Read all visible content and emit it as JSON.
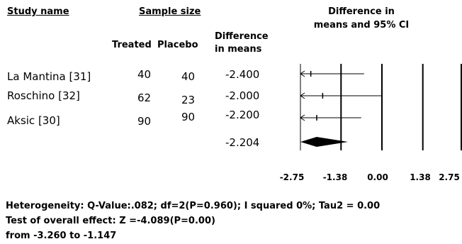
{
  "headers": {
    "study_name": "Study name",
    "sample_size": "Sample size",
    "treated": "Treated",
    "placebo": "Placebo",
    "difference_line1": "Difference",
    "difference_line2": "in means",
    "ci_line1": "Difference in",
    "ci_line2": "means and 95% CI"
  },
  "studies": [
    {
      "name": "La Mantina [31]",
      "treated": "40",
      "placebo": "40",
      "diff": "-2.400"
    },
    {
      "name": "Roschino [32]",
      "treated": "62",
      "placebo": "23",
      "diff": "-2.000"
    },
    {
      "name": "Aksic [30]",
      "treated": "90",
      "placebo": "90",
      "diff": "-2.200"
    }
  ],
  "pooled": {
    "diff": "-2.204"
  },
  "axis": {
    "tick_labels": [
      "-2.75",
      "-1.38",
      "0.00",
      "1.38",
      "2.75"
    ]
  },
  "footer": {
    "heterogeneity": "Heterogeneity:  Q-Value:.082; df=2(P=0.960); I squared 0%; Tau2 = 0.00",
    "overall": "Test of overall effect: Z =-4.089(P=0.00)",
    "range": "from -3.260 to -1.147"
  },
  "chart_data": {
    "type": "forest",
    "xlim": [
      -2.75,
      2.75
    ],
    "x_ticks": [
      -2.75,
      -1.38,
      0.0,
      1.38,
      2.75
    ],
    "studies": [
      {
        "name": "La Mantina [31]",
        "estimate": -2.4,
        "ci_low": -2.75,
        "ci_high": -0.6,
        "clipped_low": true
      },
      {
        "name": "Roschino [32]",
        "estimate": -2.0,
        "ci_low": -2.75,
        "ci_high": 0.0,
        "clipped_low": true
      },
      {
        "name": "Aksic [30]",
        "estimate": -2.2,
        "ci_low": -2.75,
        "ci_high": -0.7,
        "clipped_low": true
      }
    ],
    "pooled": {
      "estimate": -2.204,
      "ci_low": -3.26,
      "ci_high": -1.147
    }
  }
}
